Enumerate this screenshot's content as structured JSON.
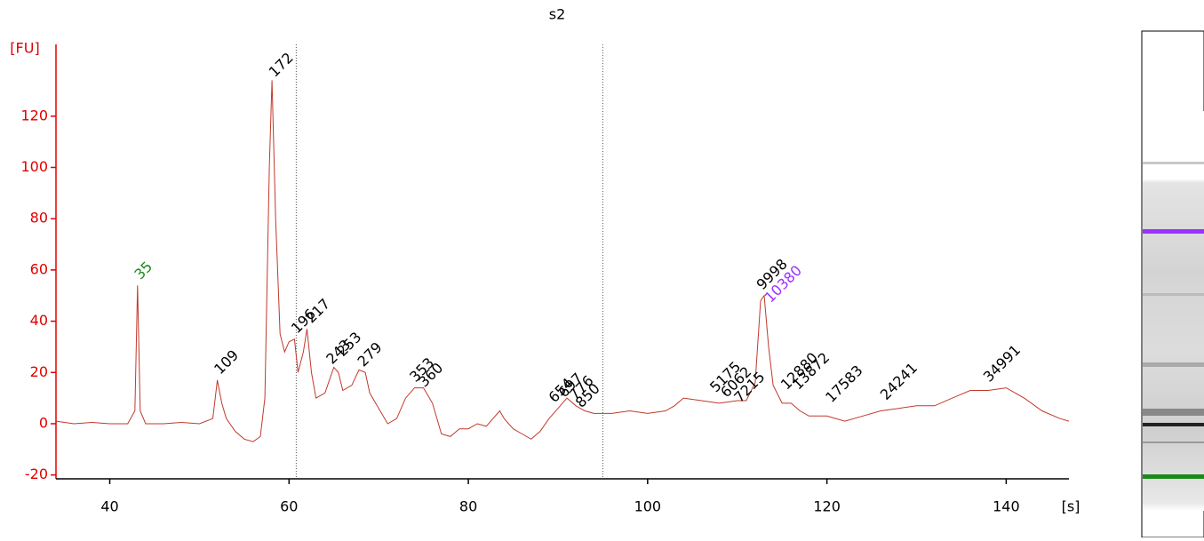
{
  "chart_data": {
    "type": "line",
    "title": "s2",
    "ylabel": "[FU]",
    "xlabel": "[s]",
    "color": "#c0392b",
    "axis_color": "#e00000",
    "xlim": [
      34,
      147
    ],
    "ylim": [
      -21.5,
      148
    ],
    "xticks": [
      40,
      60,
      80,
      100,
      120,
      140
    ],
    "yticks": [
      -20,
      0,
      20,
      40,
      60,
      80,
      100,
      120
    ],
    "markers": [
      60.8,
      95
    ],
    "x": [
      34,
      36,
      38,
      40,
      42,
      42.8,
      43.1,
      43.4,
      44,
      46,
      48,
      50,
      51.5,
      52,
      52.5,
      53,
      54,
      55,
      56,
      56.8,
      57.3,
      57.8,
      58.1,
      58.5,
      59,
      59.5,
      60,
      60.6,
      61,
      61.6,
      62,
      62.5,
      63,
      64,
      65,
      65.5,
      66,
      67,
      67.8,
      68.5,
      69,
      70,
      71,
      72,
      73,
      74,
      75,
      76,
      77,
      78,
      79,
      80,
      81,
      82,
      83.5,
      84,
      85,
      86,
      87,
      88,
      89,
      90,
      91,
      92,
      93,
      94,
      96,
      98,
      100,
      102,
      103,
      104,
      106,
      108,
      110,
      111,
      112,
      112.6,
      113,
      113.5,
      114,
      115,
      116,
      117,
      118,
      120,
      122,
      124,
      126,
      128,
      130,
      132,
      134,
      136,
      138,
      140,
      142,
      144,
      146,
      147
    ],
    "values": [
      1,
      0,
      0.5,
      0,
      0,
      5,
      54,
      5,
      0,
      0,
      0.5,
      0,
      2,
      17,
      8,
      2,
      -3,
      -6,
      -7,
      -5,
      10,
      100,
      134,
      80,
      35,
      28,
      32,
      33,
      20,
      28,
      37,
      20,
      10,
      12,
      22,
      20,
      13,
      15,
      21,
      20,
      12,
      6,
      0,
      2,
      10,
      14,
      14,
      8,
      -4,
      -5,
      -2,
      -2,
      0,
      -1,
      5,
      2,
      -2,
      -4,
      -6,
      -3,
      2,
      6,
      10,
      7,
      5,
      4,
      4,
      5,
      4,
      5,
      7,
      10,
      9,
      8,
      9,
      9,
      16,
      48,
      50,
      30,
      15,
      8,
      8,
      5,
      3,
      3,
      1,
      3,
      5,
      6,
      7,
      7,
      10,
      13,
      13,
      14,
      10,
      5,
      2,
      1
    ],
    "annotations": [
      {
        "text": "35",
        "x": 43.1,
        "y": 55,
        "color": "#1a8a1a"
      },
      {
        "text": "109",
        "x": 52,
        "y": 18,
        "color": "#000000"
      },
      {
        "text": "172",
        "x": 58.1,
        "y": 134,
        "color": "#000000"
      },
      {
        "text": "196",
        "x": 60.6,
        "y": 34,
        "color": "#000000"
      },
      {
        "text": "217",
        "x": 62.2,
        "y": 38,
        "color": "#000000"
      },
      {
        "text": "243",
        "x": 64.5,
        "y": 22,
        "color": "#000000"
      },
      {
        "text": "253",
        "x": 65.7,
        "y": 25,
        "color": "#000000"
      },
      {
        "text": "279",
        "x": 68,
        "y": 21,
        "color": "#000000"
      },
      {
        "text": "353",
        "x": 73.8,
        "y": 15,
        "color": "#000000"
      },
      {
        "text": "360",
        "x": 74.8,
        "y": 13,
        "color": "#000000"
      },
      {
        "text": "654",
        "x": 89.3,
        "y": 7,
        "color": "#000000"
      },
      {
        "text": "697",
        "x": 90.4,
        "y": 9,
        "color": "#000000"
      },
      {
        "text": "776",
        "x": 91.6,
        "y": 8,
        "color": "#000000"
      },
      {
        "text": "850",
        "x": 92.3,
        "y": 5,
        "color": "#000000"
      },
      {
        "text": "5175",
        "x": 107.3,
        "y": 11,
        "color": "#000000"
      },
      {
        "text": "6062",
        "x": 108.5,
        "y": 9,
        "color": "#000000"
      },
      {
        "text": "7215",
        "x": 110,
        "y": 7,
        "color": "#000000"
      },
      {
        "text": "9998",
        "x": 112.5,
        "y": 51,
        "color": "#000000"
      },
      {
        "text": "10380",
        "x": 113.4,
        "y": 46,
        "color": "#9b30ff"
      },
      {
        "text": "12880",
        "x": 115.2,
        "y": 12,
        "color": "#000000"
      },
      {
        "text": "13872",
        "x": 116.5,
        "y": 12,
        "color": "#000000"
      },
      {
        "text": "17583",
        "x": 120.2,
        "y": 7,
        "color": "#000000"
      },
      {
        "text": "24241",
        "x": 126.3,
        "y": 8,
        "color": "#000000"
      },
      {
        "text": "34991",
        "x": 137.8,
        "y": 15,
        "color": "#000000"
      }
    ]
  }
}
